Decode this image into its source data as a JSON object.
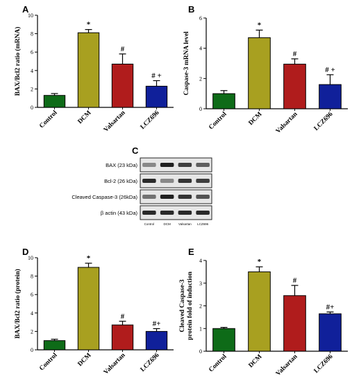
{
  "chart_data": [
    {
      "panel": "A",
      "type": "bar",
      "categories": [
        "Control",
        "DCM",
        "Valsartan",
        "LCZ696"
      ],
      "values": [
        1.3,
        8.1,
        4.7,
        2.3
      ],
      "errors": [
        0.2,
        0.35,
        1.1,
        0.6
      ],
      "annotations": [
        "",
        "*",
        "#",
        "# +"
      ],
      "colors": [
        "#0e6b18",
        "#a8a020",
        "#b01c1c",
        "#10209a"
      ],
      "ylabel": "BAX/Bcl2 ratio (mRNA)",
      "ylim": [
        0,
        10
      ],
      "yticks": [
        "0",
        "2",
        "4",
        "6",
        "8",
        "10"
      ]
    },
    {
      "panel": "B",
      "type": "bar",
      "categories": [
        "Control",
        "DCM",
        "Valsartan",
        "LCZ696"
      ],
      "values": [
        1.0,
        4.7,
        2.95,
        1.6
      ],
      "errors": [
        0.2,
        0.5,
        0.35,
        0.65
      ],
      "annotations": [
        "",
        "*",
        "#",
        "# +"
      ],
      "colors": [
        "#0e6b18",
        "#a8a020",
        "#b01c1c",
        "#10209a"
      ],
      "ylabel": "Caspase-3 mRNA level",
      "ylim": [
        0,
        6
      ],
      "yticks": [
        "0",
        "2",
        "4",
        "6"
      ]
    },
    {
      "panel": "D",
      "type": "bar",
      "categories": [
        "Control",
        "DCM",
        "Valsartan",
        "LCZ696"
      ],
      "values": [
        1.0,
        8.95,
        2.7,
        2.0
      ],
      "errors": [
        0.15,
        0.45,
        0.4,
        0.3
      ],
      "annotations": [
        "",
        "*",
        "#",
        "#+"
      ],
      "colors": [
        "#0e6b18",
        "#a8a020",
        "#b01c1c",
        "#10209a"
      ],
      "ylabel": "BAX/Bcl2 ratio (protein)",
      "ylim": [
        0,
        10
      ],
      "yticks": [
        "0",
        "2",
        "4",
        "6",
        "8",
        "10"
      ]
    },
    {
      "panel": "E",
      "type": "bar",
      "categories": [
        "Control",
        "DCM",
        "Valsartan",
        "LCZ696"
      ],
      "values": [
        1.0,
        3.5,
        2.45,
        1.65
      ],
      "errors": [
        0.05,
        0.22,
        0.45,
        0.08
      ],
      "annotations": [
        "",
        "*",
        "#",
        "#+"
      ],
      "colors": [
        "#0e6b18",
        "#a8a020",
        "#b01c1c",
        "#10209a"
      ],
      "ylabel": "Cleaved Caspase-3 protein fold of induction",
      "ylabel_lines": [
        "Cleaved Caspase-3",
        "protein fold of induction"
      ],
      "ylim": [
        0,
        4
      ],
      "yticks": [
        "0",
        "1",
        "2",
        "3",
        "4"
      ]
    }
  ],
  "blot": {
    "panel": "C",
    "rows": [
      "BAX (23 kDa)",
      "Bcl-2 (26 kDa)",
      "Cleaved Caspase-3 (26kDa)",
      "β actin (43 kDa)"
    ],
    "lanes": [
      "Control",
      "DCM",
      "Valsartan",
      "LCZ696"
    ],
    "band_intensity": [
      [
        0.45,
        0.95,
        0.8,
        0.65
      ],
      [
        0.9,
        0.45,
        0.85,
        0.8
      ],
      [
        0.55,
        0.95,
        0.85,
        0.7
      ],
      [
        0.9,
        0.9,
        0.9,
        0.9
      ]
    ]
  }
}
